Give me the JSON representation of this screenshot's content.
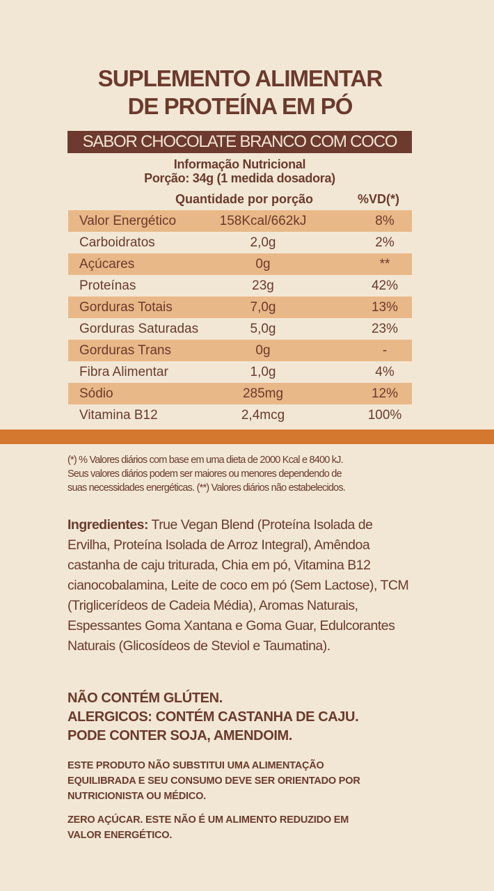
{
  "title": {
    "line1": "SUPLEMENTO ALIMENTAR",
    "line2": "DE PROTEÍNA EM PÓ"
  },
  "flavor": "SABOR CHOCOLATE BRANCO COM COCO",
  "info": {
    "heading": "Informação Nutricional",
    "portion": "Porção: 34g (1 medida dosadora)"
  },
  "table": {
    "headers": {
      "amount": "Quantidade por porção",
      "dv": "%VD(*)"
    },
    "rows": [
      {
        "name": "Valor Energético",
        "amount": "158Kcal/662kJ",
        "dv": "8%"
      },
      {
        "name": "Carboidratos",
        "amount": "2,0g",
        "dv": "2%"
      },
      {
        "name": "Açúcares",
        "amount": "0g",
        "dv": "**"
      },
      {
        "name": "Proteínas",
        "amount": "23g",
        "dv": "42%"
      },
      {
        "name": "Gorduras Totais",
        "amount": "7,0g",
        "dv": "13%"
      },
      {
        "name": "Gorduras Saturadas",
        "amount": "5,0g",
        "dv": "23%"
      },
      {
        "name": "Gorduras Trans",
        "amount": "0g",
        "dv": "-"
      },
      {
        "name": "Fibra Alimentar",
        "amount": "1,0g",
        "dv": "4%"
      },
      {
        "name": "Sódio",
        "amount": "285mg",
        "dv": "12%"
      },
      {
        "name": "Vitamina B12",
        "amount": "2,4mcg",
        "dv": "100%"
      }
    ]
  },
  "footnote": {
    "line1": "(*) % Valores diários com base em uma dieta de 2000 Kcal e 8400 kJ.",
    "line2": "Seus valores diários podem ser maiores ou menores dependendo de",
    "line3": "suas necessidades energéticas. (**) Valores diários não estabelecidos."
  },
  "ingredients": {
    "label": "Ingredientes:",
    "text": " True Vegan Blend (Proteína Isolada de Ervilha, Proteína Isolada de Arroz Integral), Amêndoa castanha de caju triturada, Chia em pó, Vitamina B12 cianocobalamina, Leite de coco em pó (Sem Lactose), TCM (Triglicerídeos de Cadeia Média), Aromas Naturais, Espessantes Goma Xantana e Goma Guar, Edulcorantes Naturais (Glicosídeos de Steviol e Taumatina)."
  },
  "warnings": {
    "line1": "NÃO CONTÉM GLÚTEN.",
    "line2": "ALERGICOS: CONTÉM CASTANHA DE CAJU.",
    "line3": "PODE CONTER SOJA, AMENDOIM."
  },
  "notice": {
    "line1": "ESTE PRODUTO NÃO SUBSTITUI UMA ALIMENTAÇÃO",
    "line2": "EQUILIBRADA E SEU CONSUMO DEVE SER ORIENTADO POR",
    "line3": "NUTRICIONISTA OU MÉDICO."
  },
  "zero_sugar": {
    "line1": "ZERO AÇÚCAR. ESTE NÃO É UM ALIMENTO REDUZIDO EM",
    "line2": "VALOR ENERGÉTICO."
  },
  "colors": {
    "text": "#6a3a2c",
    "band": "#6d3a2f",
    "stripe": "#e9b888",
    "accent": "#d4772f",
    "background": "#f2e7d5"
  }
}
